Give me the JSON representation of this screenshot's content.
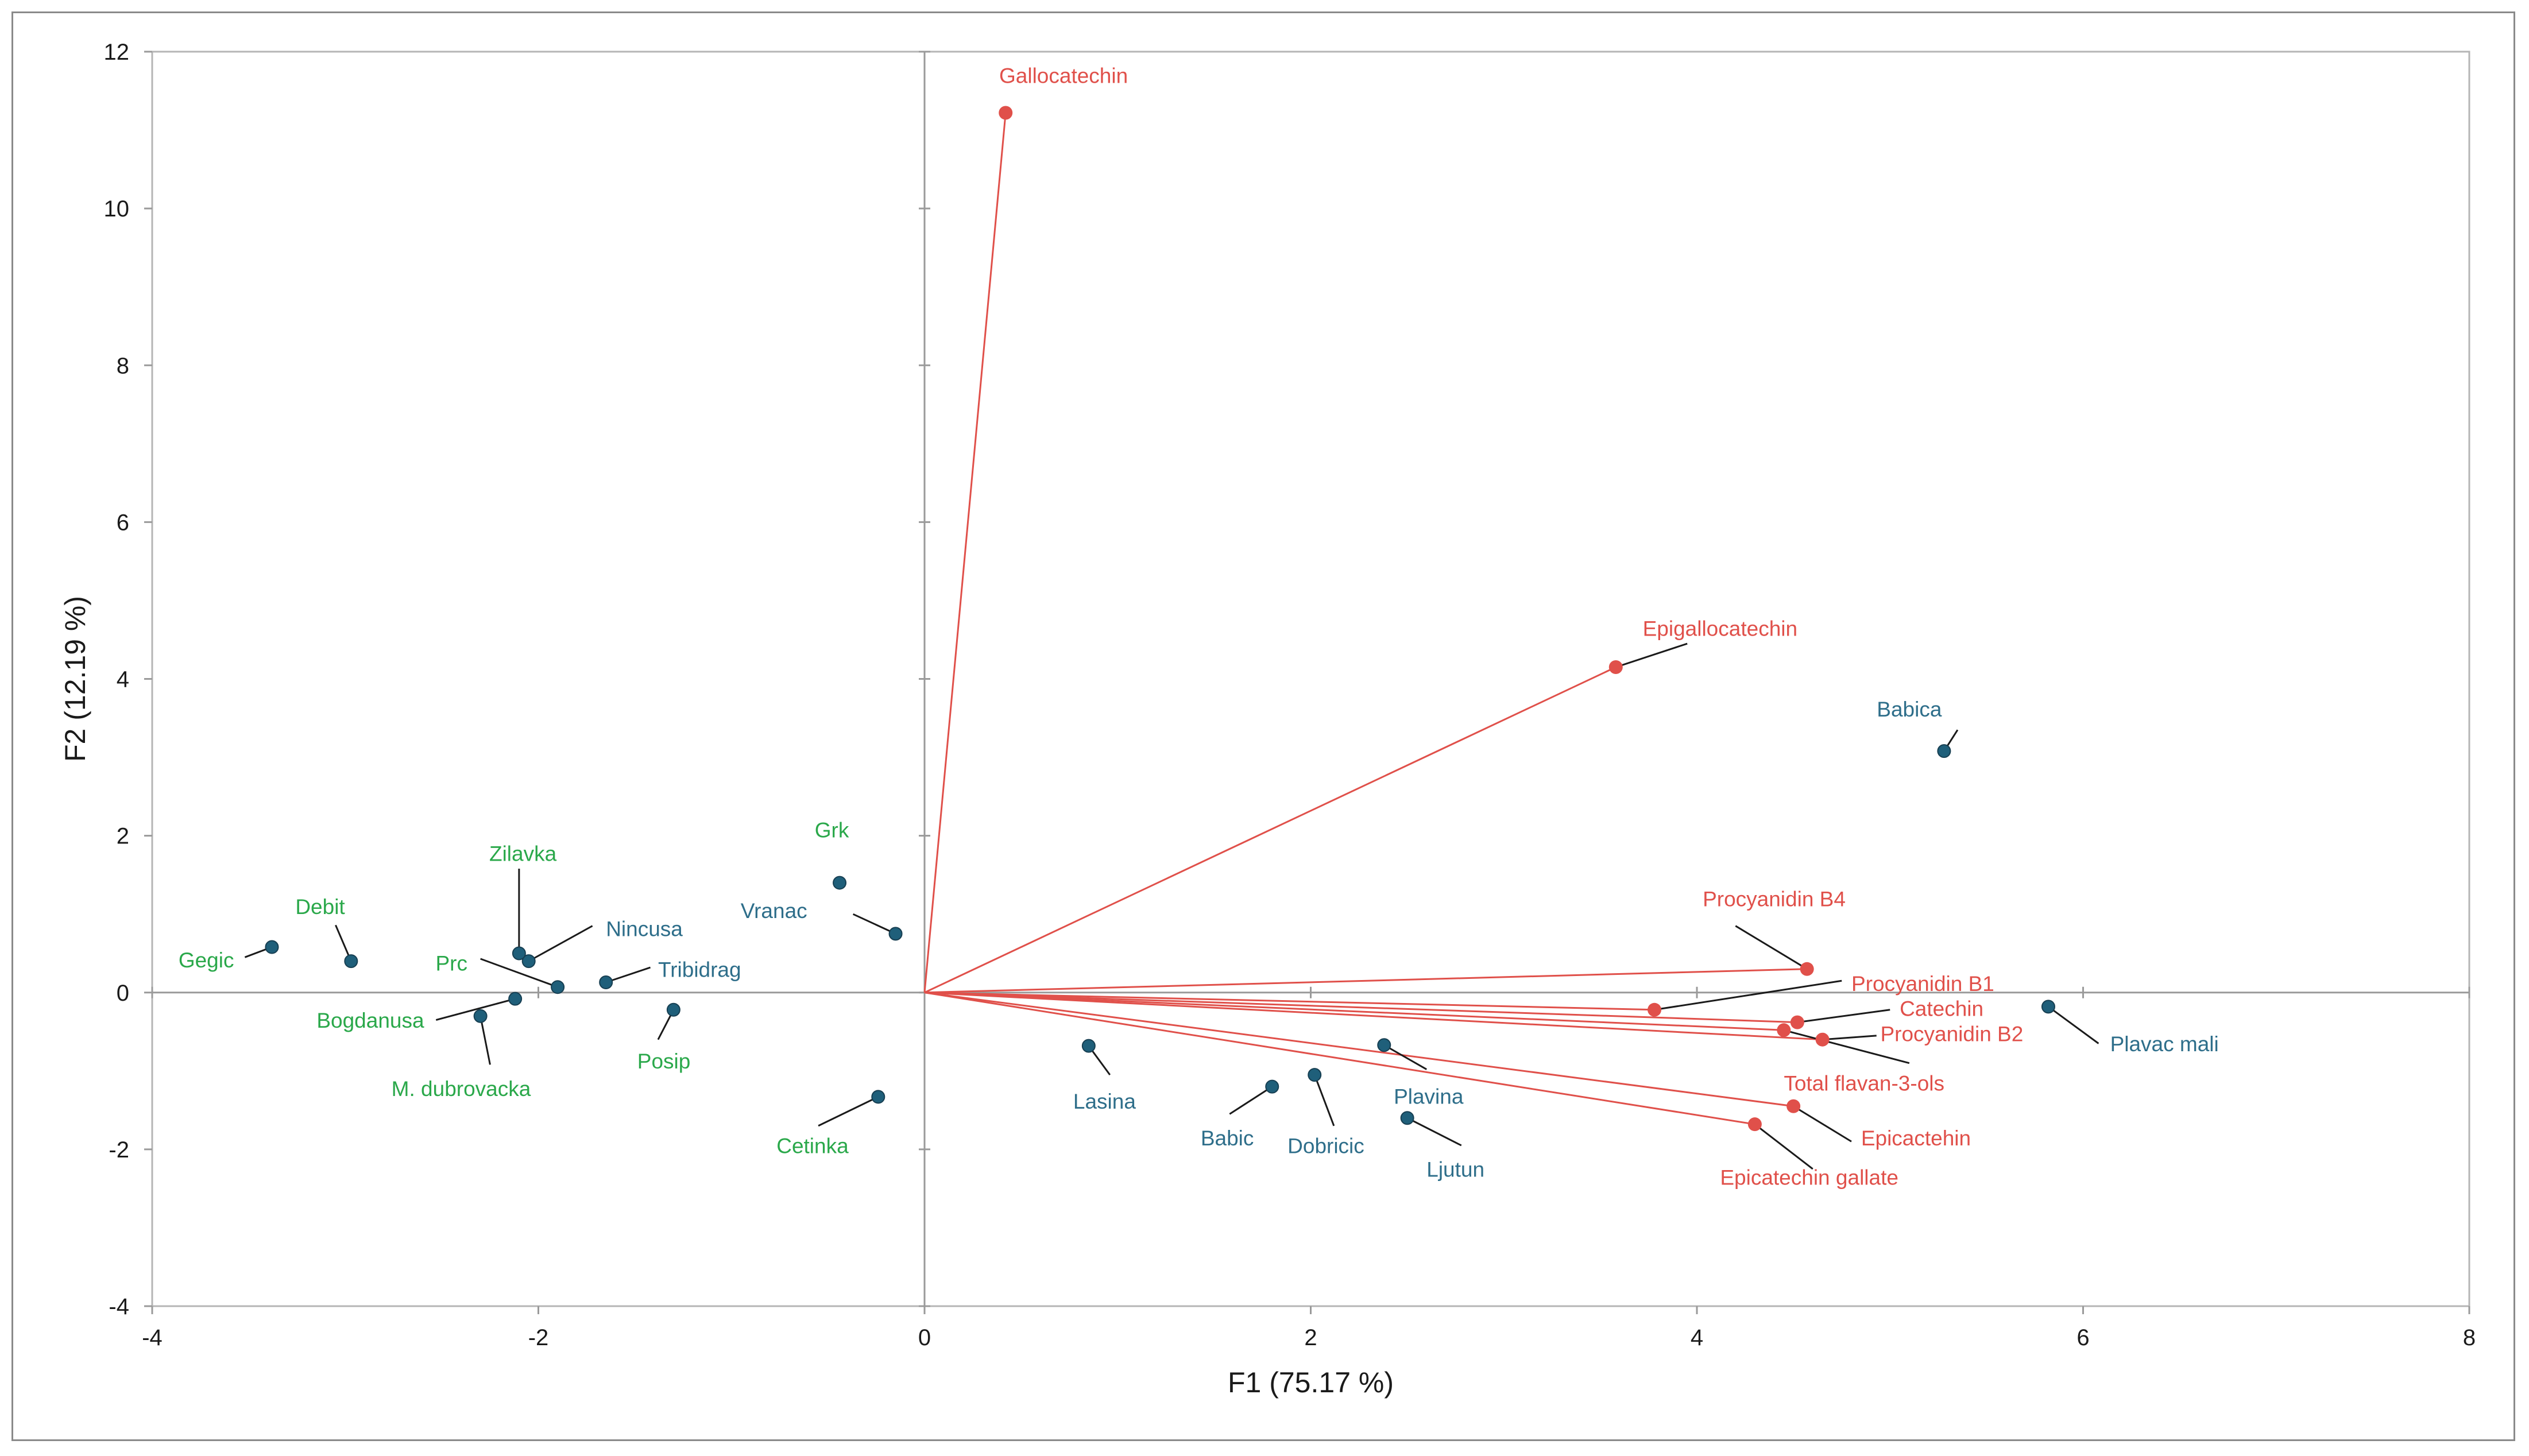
{
  "chart_data": {
    "type": "scatter",
    "subtype": "pca-biplot",
    "title": "",
    "xlabel": "F1 (75.17 %)",
    "ylabel": "F2 (12.19 %)",
    "xlim": [
      -4,
      8
    ],
    "ylim": [
      -4,
      12
    ],
    "xticks": [
      -4,
      -2,
      0,
      2,
      4,
      6,
      8
    ],
    "yticks": [
      -4,
      -2,
      0,
      2,
      4,
      6,
      8,
      10,
      12
    ],
    "grid": false,
    "colors": {
      "variables": "#e0504a",
      "red_varieties": "#2e6e8a",
      "white_varieties": "#2aa84a",
      "axis": "#9a9a9a",
      "leader": "#1a1a1a"
    },
    "variables": [
      {
        "name": "Gallocatechin",
        "x": 0.42,
        "y": 11.22,
        "label_x": 0.72,
        "label_y": 11.6,
        "anchor": "middle",
        "leader": false
      },
      {
        "name": "Epigallocatechin",
        "x": 3.58,
        "y": 4.15,
        "label_x": 4.12,
        "label_y": 4.55,
        "anchor": "middle",
        "leader": true,
        "leader_end_x": 3.95,
        "leader_end_y": 4.45
      },
      {
        "name": "Procyanidin B4",
        "x": 4.57,
        "y": 0.3,
        "label_x": 4.4,
        "label_y": 1.1,
        "anchor": "middle",
        "leader": true,
        "leader_end_x": 4.2,
        "leader_end_y": 0.85
      },
      {
        "name": "Procyanidin B1",
        "x": 3.78,
        "y": -0.22,
        "label_x": 4.8,
        "label_y": 0.02,
        "anchor": "start",
        "leader": true,
        "leader_end_x": 4.75,
        "leader_end_y": 0.15
      },
      {
        "name": "Catechin",
        "x": 4.52,
        "y": -0.38,
        "label_x": 5.05,
        "label_y": -0.3,
        "anchor": "start",
        "leader": true,
        "leader_end_x": 5.0,
        "leader_end_y": -0.22
      },
      {
        "name": "Procyanidin B2",
        "x": 4.65,
        "y": -0.6,
        "label_x": 4.95,
        "label_y": -0.62,
        "anchor": "start",
        "leader": true,
        "leader_end_x": 4.93,
        "leader_end_y": -0.55
      },
      {
        "name": "Total flavan-3-ols",
        "x": 4.45,
        "y": -0.48,
        "label_x": 4.45,
        "label_y": -1.25,
        "anchor": "start",
        "leader": true,
        "leader_end_x": 5.1,
        "leader_end_y": -0.9
      },
      {
        "name": "Epicactehin",
        "x": 4.5,
        "y": -1.45,
        "label_x": 4.85,
        "label_y": -1.95,
        "anchor": "start",
        "leader": true,
        "leader_end_x": 4.8,
        "leader_end_y": -1.9
      },
      {
        "name": "Epicatechin gallate",
        "x": 4.3,
        "y": -1.68,
        "label_x": 4.12,
        "label_y": -2.45,
        "anchor": "start",
        "leader": true,
        "leader_end_x": 4.6,
        "leader_end_y": -2.25
      }
    ],
    "observations": [
      {
        "name": "Babica",
        "group": "red",
        "x": 5.28,
        "y": 3.08,
        "label_x": 5.1,
        "label_y": 3.52,
        "anchor": "middle",
        "leader": true,
        "leader_end_x": 5.35,
        "leader_end_y": 3.35
      },
      {
        "name": "Plavac mali",
        "x": 5.82,
        "y": -0.18,
        "group": "red",
        "label_x": 6.14,
        "label_y": -0.75,
        "anchor": "start",
        "leader": true,
        "leader_end_x": 6.08,
        "leader_end_y": -0.65
      },
      {
        "name": "Plavina",
        "x": 2.38,
        "y": -0.67,
        "group": "red",
        "label_x": 2.43,
        "label_y": -1.42,
        "anchor": "start",
        "leader": true,
        "leader_end_x": 2.6,
        "leader_end_y": -0.98
      },
      {
        "name": "Ljutun",
        "x": 2.5,
        "y": -1.6,
        "group": "red",
        "label_x": 2.6,
        "label_y": -2.35,
        "anchor": "start",
        "leader": true,
        "leader_end_x": 2.78,
        "leader_end_y": -1.95
      },
      {
        "name": "Dobricic",
        "x": 2.02,
        "y": -1.05,
        "group": "red",
        "label_x": 1.88,
        "label_y": -2.05,
        "anchor": "start",
        "leader": true,
        "leader_end_x": 2.12,
        "leader_end_y": -1.7
      },
      {
        "name": "Babic",
        "x": 1.8,
        "y": -1.2,
        "group": "red",
        "label_x": 1.43,
        "label_y": -1.95,
        "anchor": "start",
        "leader": true,
        "leader_end_x": 1.58,
        "leader_end_y": -1.55
      },
      {
        "name": "Lasina",
        "x": 0.85,
        "y": -0.68,
        "group": "red",
        "label_x": 0.77,
        "label_y": -1.48,
        "anchor": "start",
        "leader": true,
        "leader_end_x": 0.96,
        "leader_end_y": -1.05
      },
      {
        "name": "Vranac",
        "x": -0.15,
        "y": 0.75,
        "group": "red",
        "label_x": -0.78,
        "label_y": 0.95,
        "anchor": "middle",
        "leader": true,
        "leader_end_x": -0.37,
        "leader_end_y": 1.0
      },
      {
        "name": "Grk",
        "x": -0.44,
        "y": 1.4,
        "group": "white",
        "label_x": -0.48,
        "label_y": 1.98,
        "anchor": "middle",
        "leader": false
      },
      {
        "name": "Cetinka",
        "x": -0.24,
        "y": -1.33,
        "group": "white",
        "label_x": -0.58,
        "label_y": -2.05,
        "anchor": "middle",
        "leader": true,
        "leader_end_x": -0.55,
        "leader_end_y": -1.7
      },
      {
        "name": "Posip",
        "x": -1.3,
        "y": -0.22,
        "group": "white",
        "label_x": -1.35,
        "label_y": -0.97,
        "anchor": "middle",
        "leader": true,
        "leader_end_x": -1.38,
        "leader_end_y": -0.6
      },
      {
        "name": "Tribidrag",
        "x": -1.65,
        "y": 0.13,
        "group": "red",
        "label_x": -1.38,
        "label_y": 0.2,
        "anchor": "start",
        "leader": true,
        "leader_end_x": -1.42,
        "leader_end_y": 0.32
      },
      {
        "name": "Nincusa",
        "x": -2.05,
        "y": 0.4,
        "group": "red",
        "label_x": -1.65,
        "label_y": 0.72,
        "anchor": "start",
        "leader": true,
        "leader_end_x": -1.72,
        "leader_end_y": 0.85
      },
      {
        "name": "Zilavka",
        "x": -2.1,
        "y": 0.5,
        "group": "white",
        "label_x": -2.08,
        "label_y": 1.68,
        "anchor": "middle",
        "leader": true,
        "leader_end_x": -2.1,
        "leader_end_y": 1.58
      },
      {
        "name": "Prc",
        "x": -1.9,
        "y": 0.07,
        "group": "white",
        "label_x": -2.45,
        "label_y": 0.28,
        "anchor": "middle",
        "leader": true,
        "leader_end_x": -2.3,
        "leader_end_y": 0.43
      },
      {
        "name": "Bogdanusa",
        "x": -2.12,
        "y": -0.08,
        "group": "white",
        "label_x": -2.87,
        "label_y": -0.45,
        "anchor": "middle",
        "leader": true,
        "leader_end_x": -2.53,
        "leader_end_y": -0.35
      },
      {
        "name": "M. dubrovacka",
        "x": -2.3,
        "y": -0.3,
        "group": "white",
        "label_x": -2.4,
        "label_y": -1.32,
        "anchor": "middle",
        "leader": true,
        "leader_end_x": -2.25,
        "leader_end_y": -0.92
      },
      {
        "name": "Debit",
        "x": -2.97,
        "y": 0.4,
        "group": "white",
        "label_x": -3.13,
        "label_y": 1.0,
        "anchor": "middle",
        "leader": true,
        "leader_end_x": -3.05,
        "leader_end_y": 0.86
      },
      {
        "name": "Gegic",
        "x": -3.38,
        "y": 0.58,
        "group": "white",
        "label_x": -3.72,
        "label_y": 0.32,
        "anchor": "middle",
        "leader": true,
        "leader_end_x": -3.52,
        "leader_end_y": 0.45
      }
    ]
  }
}
